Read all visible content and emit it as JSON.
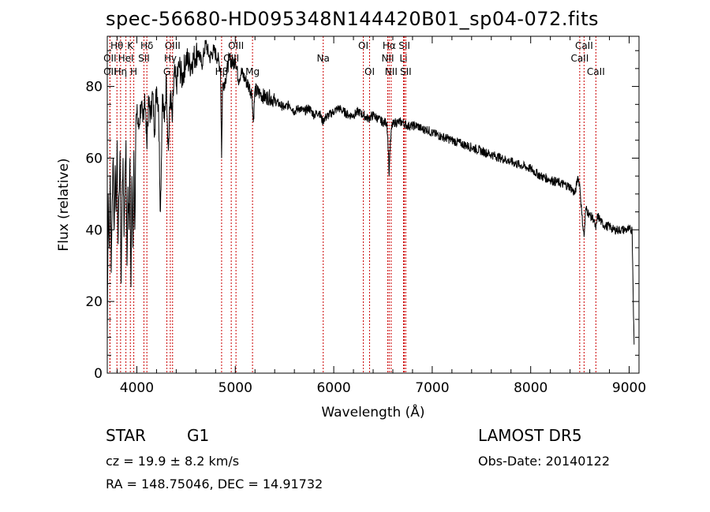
{
  "title": "spec-56680-HD095348N144420B01_sp04-072.fits",
  "info": {
    "class": "STAR",
    "subclass": "G1",
    "survey": "LAMOST DR5",
    "cz": "cz = 19.9 ± 8.2 km/s",
    "obs_date": "Obs-Date: 20140122",
    "radec": "RA = 148.75046, DEC =  14.91732"
  },
  "colors": {
    "spectrum": "#000000",
    "lines": "#cc0000",
    "axes": "#000000"
  },
  "chart_data": {
    "type": "line",
    "title": "spec-56680-HD095348N144420B01_sp04-072.fits",
    "xlabel": "Wavelength (Å)",
    "ylabel": "Flux (relative)",
    "xlim": [
      3700,
      9100
    ],
    "ylim": [
      0,
      94
    ],
    "xticks": [
      4000,
      5000,
      6000,
      7000,
      8000,
      9000
    ],
    "yticks": [
      0,
      20,
      40,
      60,
      80
    ],
    "grid": false,
    "series": [
      {
        "x": [
          3700,
          3710,
          3720,
          3730,
          3740,
          3750,
          3760,
          3770,
          3780,
          3790,
          3800,
          3810,
          3820,
          3830,
          3840,
          3850,
          3860,
          3870,
          3880,
          3890,
          3900,
          3910,
          3920,
          3930,
          3940,
          3950,
          3960,
          3970,
          3980,
          3990,
          4000,
          4020,
          4040,
          4060,
          4080,
          4100,
          4120,
          4140,
          4160,
          4180,
          4200,
          4220,
          4240,
          4260,
          4280,
          4300,
          4320,
          4340,
          4360,
          4380,
          4400,
          4430,
          4460,
          4500,
          4540,
          4580,
          4620,
          4660,
          4700,
          4740,
          4780,
          4820,
          4850,
          4861,
          4870,
          4900,
          4940,
          4980,
          5000,
          5030,
          5060,
          5100,
          5140,
          5170,
          5183,
          5200,
          5250,
          5300,
          5350,
          5400,
          5450,
          5500,
          5550,
          5600,
          5650,
          5700,
          5750,
          5800,
          5850,
          5890,
          5900,
          5950,
          6000,
          6050,
          6100,
          6150,
          6200,
          6250,
          6300,
          6350,
          6400,
          6450,
          6500,
          6540,
          6555,
          6563,
          6570,
          6590,
          6620,
          6650,
          6700,
          6750,
          6800,
          6850,
          6900,
          6950,
          7000,
          7100,
          7200,
          7300,
          7400,
          7500,
          7600,
          7700,
          7800,
          7900,
          8000,
          8100,
          8200,
          8300,
          8400,
          8450,
          8480,
          8500,
          8520,
          8542,
          8560,
          8600,
          8640,
          8662,
          8680,
          8720,
          8760,
          8800,
          8840,
          8880,
          8920,
          8960,
          9000,
          9030,
          9050
        ],
        "y": [
          10,
          50,
          35,
          55,
          28,
          48,
          60,
          40,
          58,
          45,
          65,
          36,
          50,
          62,
          25,
          48,
          60,
          38,
          55,
          65,
          30,
          52,
          40,
          60,
          24,
          55,
          35,
          62,
          40,
          70,
          72,
          68,
          75,
          70,
          78,
          65,
          75,
          72,
          78,
          68,
          80,
          75,
          45,
          78,
          70,
          82,
          62,
          78,
          70,
          84,
          80,
          86,
          82,
          88,
          86,
          88,
          90,
          86,
          92,
          88,
          90,
          88,
          85,
          60,
          80,
          82,
          88,
          86,
          88,
          82,
          84,
          82,
          80,
          78,
          70,
          79,
          78,
          77,
          77,
          76,
          75,
          74,
          75,
          73,
          74,
          73,
          74,
          72,
          73,
          70,
          71,
          72,
          73,
          74,
          73,
          72,
          72,
          73,
          72,
          71,
          72,
          71,
          70,
          70,
          62,
          55,
          62,
          69,
          70,
          70,
          70,
          69,
          69,
          69,
          68,
          68,
          67,
          66,
          65,
          64,
          63,
          62,
          61,
          60,
          59,
          58,
          57,
          55,
          54,
          53,
          52,
          50,
          55,
          52,
          44,
          38,
          46,
          44,
          43,
          40,
          44,
          42,
          41,
          41,
          40,
          40,
          40,
          40,
          40,
          40,
          8
        ]
      }
    ],
    "annotations": [
      {
        "label": "Hθ",
        "wavelength": 3798,
        "row": 0
      },
      {
        "label": "K",
        "wavelength": 3934,
        "row": 0
      },
      {
        "label": "Hδ",
        "wavelength": 4102,
        "row": 0
      },
      {
        "label": "OII",
        "wavelength": 3727,
        "row": 1
      },
      {
        "label": "HeI",
        "wavelength": 3889,
        "row": 1
      },
      {
        "label": "SII",
        "wavelength": 4072,
        "row": 1
      },
      {
        "label": "OII",
        "wavelength": 3727,
        "row": 2
      },
      {
        "label": "Hη",
        "wavelength": 3835,
        "row": 2
      },
      {
        "label": "H",
        "wavelength": 3969,
        "row": 2
      },
      {
        "label": "OIII",
        "wavelength": 4363,
        "row": 0
      },
      {
        "label": "Hγ",
        "wavelength": 4340,
        "row": 1
      },
      {
        "label": "G",
        "wavelength": 4305,
        "row": 2
      },
      {
        "label": "OIII",
        "wavelength": 5007,
        "row": 0
      },
      {
        "label": "OIII",
        "wavelength": 4959,
        "row": 1
      },
      {
        "label": "Hβ",
        "wavelength": 4861,
        "row": 2
      },
      {
        "label": "Mg",
        "wavelength": 5175,
        "row": 2
      },
      {
        "label": "Na",
        "wavelength": 5893,
        "row": 1
      },
      {
        "label": "OI",
        "wavelength": 6300,
        "row": 0
      },
      {
        "label": "OI",
        "wavelength": 6364,
        "row": 2
      },
      {
        "label": "Hα",
        "wavelength": 6563,
        "row": 0
      },
      {
        "label": "SII",
        "wavelength": 6717,
        "row": 0
      },
      {
        "label": "NII",
        "wavelength": 6548,
        "row": 1
      },
      {
        "label": "Li",
        "wavelength": 6708,
        "row": 1
      },
      {
        "label": "NII",
        "wavelength": 6583,
        "row": 2
      },
      {
        "label": "SII",
        "wavelength": 6731,
        "row": 2
      },
      {
        "label": "CaII",
        "wavelength": 8542,
        "row": 0
      },
      {
        "label": "CaII",
        "wavelength": 8498,
        "row": 1
      },
      {
        "label": "CaII",
        "wavelength": 8662,
        "row": 2
      }
    ]
  }
}
